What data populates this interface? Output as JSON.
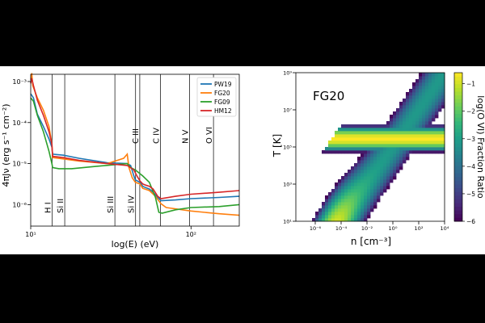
{
  "chart_data": [
    {
      "type": "line",
      "xlabel": "log(E) (eV)",
      "ylabel": "4πJν (erg s⁻¹ cm⁻²)",
      "xscale": "log",
      "yscale": "log",
      "xlim": [
        10,
        200
      ],
      "ylim": [
        3e-07,
        0.0015
      ],
      "x_ticks": [
        {
          "v": 10,
          "label": "10¹"
        },
        {
          "v": 100,
          "label": "10²"
        }
      ],
      "y_ticks": [
        {
          "v": 1e-06,
          "label": "10⁻⁶"
        },
        {
          "v": 1e-05,
          "label": "10⁻⁵"
        },
        {
          "v": 0.0001,
          "label": "10⁻⁴"
        },
        {
          "v": 0.001,
          "label": "10⁻³"
        }
      ],
      "legend_position": "top-right",
      "ion_edges": [
        {
          "label": "H I",
          "energy": 13.6
        },
        {
          "label": "Si II",
          "energy": 16.3
        },
        {
          "label": "Si III",
          "energy": 33.5
        },
        {
          "label": "Si IV",
          "energy": 45.1
        },
        {
          "label": "C III",
          "energy": 47.9
        },
        {
          "label": "C IV",
          "energy": 64.5
        },
        {
          "label": "N V",
          "energy": 97.9
        },
        {
          "label": "O VI",
          "energy": 138.1
        }
      ],
      "series": [
        {
          "name": "PW19",
          "color": "#1f77b4",
          "x": [
            10,
            10.4,
            11,
            12,
            13,
            13.55,
            13.7,
            16,
            20,
            30,
            40,
            42,
            44,
            45,
            48,
            50,
            52,
            55,
            58,
            62,
            65,
            80,
            100,
            150,
            200
          ],
          "y": [
            0.0005,
            0.0004,
            0.00016,
            8e-05,
            4e-05,
            2.5e-05,
            1.7e-05,
            1.6e-05,
            1.35e-05,
            1.05e-05,
            1e-05,
            9e-06,
            5e-06,
            4e-06,
            3.5e-06,
            2.8e-06,
            2.6e-06,
            2.4e-06,
            2e-06,
            1.5e-06,
            1.25e-06,
            1.3e-06,
            1.4e-06,
            1.5e-06,
            1.6e-06
          ]
        },
        {
          "name": "FG20",
          "color": "#ff7f0e",
          "x": [
            10,
            10.15,
            10.3,
            11,
            12,
            13,
            13.55,
            13.7,
            16,
            20,
            30,
            38,
            40,
            41,
            43,
            45,
            48,
            50,
            55,
            60,
            65,
            70,
            100,
            150,
            200
          ],
          "y": [
            0.0011,
            0.0016,
            0.0008,
            0.0004,
            0.0002,
            8e-05,
            3e-05,
            1.4e-05,
            1.3e-05,
            1.15e-05,
            1e-05,
            1.35e-05,
            1.7e-05,
            8e-06,
            4.5e-06,
            3.5e-06,
            3.2e-06,
            2.5e-06,
            2.2e-06,
            1.6e-06,
            1.05e-06,
            8.5e-07,
            7e-07,
            6e-07,
            5.5e-07
          ]
        },
        {
          "name": "FG09",
          "color": "#2ca02c",
          "x": [
            10,
            10.4,
            11,
            12,
            13,
            13.55,
            13.7,
            15,
            18,
            25,
            40,
            42,
            45,
            50,
            55,
            60,
            63,
            66,
            80,
            100,
            150,
            200
          ],
          "y": [
            0.0004,
            0.00033,
            0.00015,
            6e-05,
            2e-05,
            1e-05,
            8e-06,
            7.5e-06,
            7.5e-06,
            8.5e-06,
            1e-05,
            8e-06,
            7e-06,
            5e-06,
            3.5e-06,
            1.5e-06,
            6.5e-07,
            6.2e-07,
            7.5e-07,
            8.5e-07,
            9e-07,
            1e-06
          ]
        },
        {
          "name": "HM12",
          "color": "#d62728",
          "x": [
            10,
            10.15,
            10.4,
            11,
            12,
            13,
            13.55,
            13.7,
            16,
            20,
            30,
            40,
            44,
            46,
            48,
            50,
            52,
            55,
            58,
            62,
            65,
            80,
            100,
            150,
            200
          ],
          "y": [
            0.0009,
            0.0012,
            0.0008,
            0.00035,
            0.00015,
            6e-05,
            3e-05,
            1.5e-05,
            1.4e-05,
            1.2e-05,
            1e-05,
            9e-06,
            7e-06,
            5e-06,
            3.8e-06,
            3.2e-06,
            3e-06,
            2.8e-06,
            2.4e-06,
            1.6e-06,
            1.4e-06,
            1.6e-06,
            1.8e-06,
            2e-06,
            2.2e-06
          ]
        }
      ]
    },
    {
      "type": "heatmap",
      "title": "FG20",
      "xlabel": "n [cm⁻³]",
      "ylabel": "T [K]",
      "xscale": "log",
      "yscale": "log",
      "x_log_range": [
        -7.5,
        4
      ],
      "y_log_range": [
        1,
        9
      ],
      "x_ticks": [
        {
          "v": -6,
          "label": "10⁻⁶"
        },
        {
          "v": -4,
          "label": "10⁻⁴"
        },
        {
          "v": -2,
          "label": "10⁻²"
        },
        {
          "v": 0,
          "label": "10⁰"
        },
        {
          "v": 2,
          "label": "10²"
        },
        {
          "v": 4,
          "label": "10⁴"
        }
      ],
      "y_ticks": [
        {
          "v": 1,
          "label": "10¹"
        },
        {
          "v": 3,
          "label": "10³"
        },
        {
          "v": 5,
          "label": "10⁵"
        },
        {
          "v": 7,
          "label": "10⁷"
        },
        {
          "v": 9,
          "label": "10⁹"
        }
      ],
      "colorbar": {
        "label": "log(O VI) Fraction Ratio",
        "range": [
          -6,
          -0.6
        ],
        "ticks": [
          {
            "v": -1,
            "label": "−1"
          },
          {
            "v": -2,
            "label": "−2"
          },
          {
            "v": -3,
            "label": "−3"
          },
          {
            "v": -4,
            "label": "−4"
          },
          {
            "v": -5,
            "label": "−5"
          },
          {
            "v": -6,
            "label": "−6"
          }
        ],
        "colormap": "viridis"
      },
      "model": {
        "band_center_logT": 5.45,
        "band_right_logn": 4,
        "ridge_slope": 1.0,
        "ridge_offset": 9.0,
        "peak_logn": -5.0,
        "peak_logT": 2.6,
        "min_logn": -7.2
      }
    }
  ]
}
